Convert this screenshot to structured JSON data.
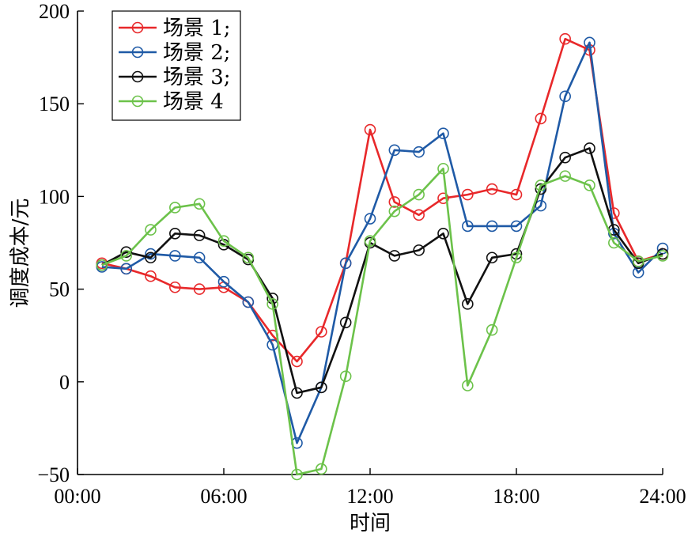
{
  "chart_data": {
    "type": "line",
    "xlabel": "时间",
    "ylabel": "调度成本/元",
    "xlim": [
      0,
      24
    ],
    "ylim": [
      -50,
      200
    ],
    "xticks": [
      0,
      6,
      12,
      18,
      24
    ],
    "xtick_labels": [
      "00:00",
      "06:00",
      "12:00",
      "18:00",
      "24:00"
    ],
    "yticks": [
      -50,
      0,
      50,
      100,
      150,
      200
    ],
    "ytick_labels": [
      "−50",
      "0",
      "50",
      "100",
      "150",
      "200"
    ],
    "grid": false,
    "legend_position": "top-left",
    "x": [
      1,
      2,
      3,
      4,
      5,
      6,
      7,
      8,
      9,
      10,
      11,
      12,
      13,
      14,
      15,
      16,
      17,
      18,
      19,
      20,
      21,
      22,
      23,
      24
    ],
    "series": [
      {
        "name": "场景 1;",
        "color": "#e8282a",
        "values": [
          64,
          61,
          57,
          51,
          50,
          51,
          43,
          25,
          11,
          27,
          64,
          136,
          97,
          90,
          99,
          101,
          104,
          101,
          142,
          185,
          179,
          91,
          65,
          69
        ]
      },
      {
        "name": "场景 2;",
        "color": "#1f5aa6",
        "values": [
          62,
          61,
          69,
          68,
          67,
          54,
          43,
          20,
          -33,
          -3,
          64,
          88,
          125,
          124,
          134,
          84,
          84,
          84,
          95,
          154,
          183,
          80,
          59,
          72
        ]
      },
      {
        "name": "场景 3;",
        "color": "#111111",
        "values": [
          63,
          70,
          67,
          80,
          79,
          74,
          66,
          45,
          -6,
          -3,
          32,
          75,
          68,
          71,
          80,
          42,
          67,
          69,
          104,
          121,
          126,
          82,
          64,
          69
        ]
      },
      {
        "name": "场景 4",
        "color": "#6cc24a",
        "values": [
          63,
          68,
          82,
          94,
          96,
          76,
          67,
          42,
          -50,
          -47,
          3,
          76,
          92,
          101,
          115,
          -2,
          28,
          67,
          106,
          111,
          106,
          75,
          65,
          68
        ]
      }
    ]
  }
}
